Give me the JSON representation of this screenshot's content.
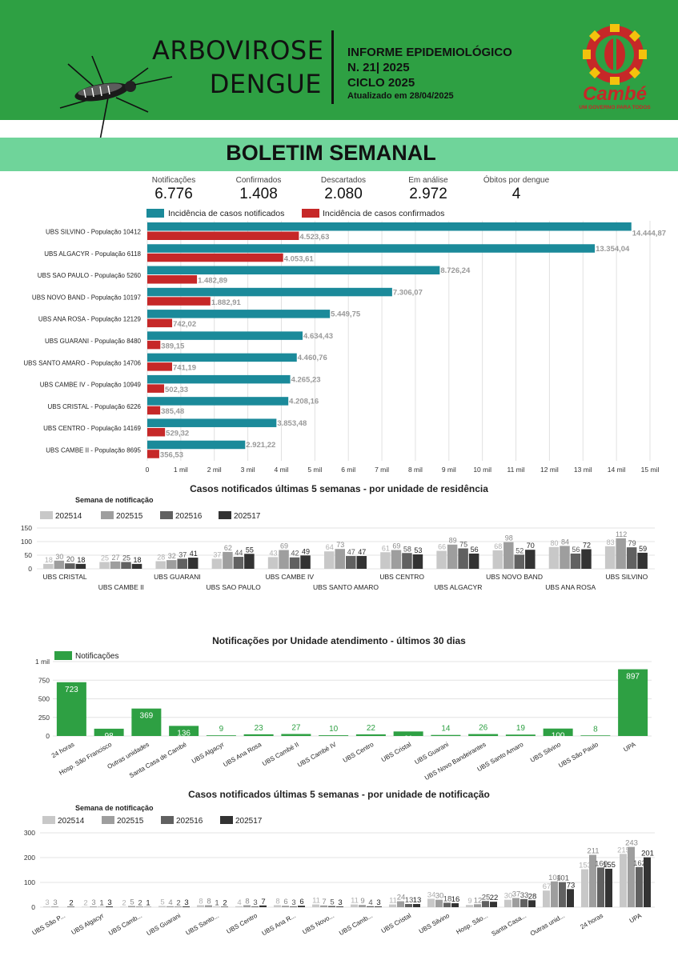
{
  "header": {
    "title_line1": "ARBOVIROSE",
    "title_line2": "DENGUE",
    "info_line1": "INFORME EPIDEMIOLÓGICO",
    "info_line2": "N. 21| 2025",
    "info_line3": "CICLO 2025",
    "updated": "Atualizado em 28/04/2025",
    "logo_text": "Cambé",
    "logo_tagline": "UM GOVERNO PARA TODOS"
  },
  "banner": "BOLETIM SEMANAL",
  "kpis": [
    {
      "label": "Notificações",
      "value": "6.776"
    },
    {
      "label": "Confirmados",
      "value": "1.408"
    },
    {
      "label": "Descartados",
      "value": "2.080"
    },
    {
      "label": "Em análise",
      "value": "2.972"
    },
    {
      "label": "Óbitos por dengue",
      "value": "4"
    }
  ],
  "colors": {
    "green": "#2ea043",
    "teal": "#1b8a9a",
    "red": "#c62828",
    "banner": "#6fd49a",
    "w1": "#c8c8c8",
    "w2": "#9e9e9e",
    "w3": "#616161",
    "w4": "#333333"
  },
  "titles": {
    "chart2": "Casos notificados últimas 5 semanas - por unidade de residência",
    "chart3": "Notificações por Unidade atendimento - últimos 30 dias",
    "chart4": "Casos notificados últimas 5 semanas - por unidade de notificação",
    "subtitle": "Semana de notificação"
  },
  "chart_data": [
    {
      "type": "bar",
      "orientation": "horizontal",
      "categories": [
        "UBS SILVINO - População 10412",
        "UBS ALGACYR - População 6118",
        "UBS SAO PAULO - População 5260",
        "UBS NOVO BAND - População 10197",
        "UBS ANA ROSA - População 12129",
        "UBS GUARANI - População 8480",
        "UBS SANTO AMARO - População 14706",
        "UBS CAMBE IV - População 10949",
        "UBS CRISTAL - População 6226",
        "UBS CENTRO - População 14169",
        "UBS CAMBE II - População 8695"
      ],
      "series": [
        {
          "name": "Incidência de casos notificados",
          "values": [
            14444.87,
            13354.04,
            8726.24,
            7306.07,
            5449.75,
            4634.43,
            4460.76,
            4265.23,
            4208.16,
            3853.48,
            2921.22
          ],
          "labels": [
            "14.444,87",
            "13.354,04",
            "8.726,24",
            "7.306,07",
            "5.449,75",
            "4.634,43",
            "4.460,76",
            "4.265,23",
            "4.208,16",
            "3.853,48",
            "2.921,22"
          ]
        },
        {
          "name": "Incidência de casos confirmados",
          "values": [
            4523.63,
            4053.61,
            1482.89,
            1882.91,
            742.02,
            389.15,
            741.19,
            502.33,
            385.48,
            529.32,
            356.53
          ],
          "labels": [
            "4.523,63",
            "4.053,61",
            "1.482,89",
            "1.882,91",
            "742,02",
            "389,15",
            "741,19",
            "502,33",
            "385,48",
            "529,32",
            "356,53"
          ]
        }
      ],
      "xlim": [
        0,
        15000
      ],
      "ticks": [
        "0",
        "1 mil",
        "2 mil",
        "3 mil",
        "4 mil",
        "5 mil",
        "6 mil",
        "7 mil",
        "8 mil",
        "9 mil",
        "10 mil",
        "11 mil",
        "12 mil",
        "13 mil",
        "14 mil",
        "15 mil"
      ],
      "grid": true,
      "legend": "top"
    },
    {
      "type": "bar",
      "title": "Casos notificados últimas 5 semanas - por unidade de residência",
      "categories": [
        "UBS CRISTAL",
        "UBS CAMBE II",
        "UBS GUARANI",
        "UBS SAO PAULO",
        "UBS CAMBE IV",
        "UBS SANTO AMARO",
        "UBS CENTRO",
        "UBS ALGACYR",
        "UBS NOVO BAND",
        "UBS ANA ROSA",
        "UBS SILVINO"
      ],
      "series": [
        {
          "name": "202514",
          "values": [
            18,
            25,
            28,
            37,
            43,
            64,
            61,
            66,
            68,
            80,
            83
          ]
        },
        {
          "name": "202515",
          "values": [
            30,
            27,
            32,
            62,
            69,
            73,
            69,
            89,
            98,
            84,
            112
          ]
        },
        {
          "name": "202516",
          "values": [
            20,
            25,
            37,
            44,
            42,
            47,
            58,
            75,
            52,
            56,
            79
          ]
        },
        {
          "name": "202517",
          "values": [
            18,
            18,
            41,
            55,
            49,
            47,
            53,
            56,
            70,
            72,
            59
          ]
        }
      ],
      "ylim": [
        0,
        150
      ],
      "yticks": [
        "0",
        "50",
        "100",
        "150"
      ],
      "legend": "top-left"
    },
    {
      "type": "bar",
      "title": "Notificações por Unidade atendimento - últimos 30 dias",
      "categories": [
        "24 horas",
        "Hosp. São Francisco",
        "Outras unidades",
        "Santa Casa de Cambé",
        "UBS Algacyr",
        "UBS Ana Rosa",
        "UBS Cambé II",
        "UBS Cambé IV",
        "UBS Centro",
        "UBS Cristal",
        "UBS Guarani",
        "UBS Novo Bandeirantes",
        "UBS Santo Amaro",
        "UBS Silvino",
        "UBS São Paulo",
        "UPA"
      ],
      "series": [
        {
          "name": "Notificações",
          "values": [
            723,
            98,
            369,
            136,
            9,
            23,
            27,
            10,
            22,
            61,
            14,
            26,
            19,
            100,
            8,
            897
          ]
        }
      ],
      "ylim": [
        0,
        1000
      ],
      "yticks": [
        "0",
        "250",
        "500",
        "750",
        "1 mil"
      ],
      "legend": "top-left"
    },
    {
      "type": "bar",
      "title": "Casos notificados últimas 5 semanas - por unidade de notificação",
      "categories": [
        "UBS São P...",
        "UBS Algacyr",
        "UBS Camb...",
        "UBS Guarani",
        "UBS Santo...",
        "UBS Centro",
        "UBS Ana R...",
        "UBS Novo...",
        "UBS Camb...",
        "UBS Cristal",
        "UBS Silvino",
        "Hosp. São...",
        "Santa Casa...",
        "Outras unid...",
        "24 horas",
        "UPA"
      ],
      "series": [
        {
          "name": "202514",
          "values": [
            3,
            2,
            2,
            5,
            8,
            4,
            8,
            11,
            11,
            11,
            34,
            9,
            30,
            67,
            153,
            215
          ]
        },
        {
          "name": "202515",
          "values": [
            3,
            3,
            5,
            4,
            8,
            8,
            6,
            7,
            9,
            24,
            30,
            12,
            37,
            104,
            211,
            243
          ]
        },
        {
          "name": "202516",
          "values": [
            0,
            1,
            2,
            2,
            1,
            3,
            3,
            5,
            4,
            13,
            18,
            25,
            33,
            101,
            160,
            162
          ]
        },
        {
          "name": "202517",
          "values": [
            2,
            3,
            1,
            3,
            2,
            7,
            6,
            3,
            3,
            13,
            16,
            22,
            28,
            73,
            155,
            201
          ]
        }
      ],
      "labels": [
        [
          "3",
          "3",
          "",
          "2"
        ],
        [
          "2",
          "3",
          "1",
          "3"
        ],
        [
          "2",
          "5",
          "2",
          "1"
        ],
        [
          "5",
          "4",
          "2",
          "3"
        ],
        [
          "8",
          "8",
          "1",
          "2"
        ],
        [
          "4",
          "8",
          "3",
          "7"
        ],
        [
          "8",
          "6",
          "3",
          "6"
        ],
        [
          "11",
          "7",
          "5",
          "3"
        ],
        [
          "11",
          "9",
          "4",
          "3"
        ],
        [
          "11",
          "24",
          "13",
          "13"
        ],
        [
          "34",
          "30",
          "18",
          "16"
        ],
        [
          "9",
          "12",
          "25",
          "22"
        ],
        [
          "30",
          "37",
          "33",
          "28"
        ],
        [
          "67",
          "104",
          "101",
          "73"
        ],
        [
          "153",
          "211",
          "160",
          "155"
        ],
        [
          "215",
          "243",
          "162",
          "201"
        ]
      ],
      "ylim": [
        0,
        300
      ],
      "yticks": [
        "0",
        "100",
        "200",
        "300"
      ],
      "legend": "top-left"
    }
  ]
}
